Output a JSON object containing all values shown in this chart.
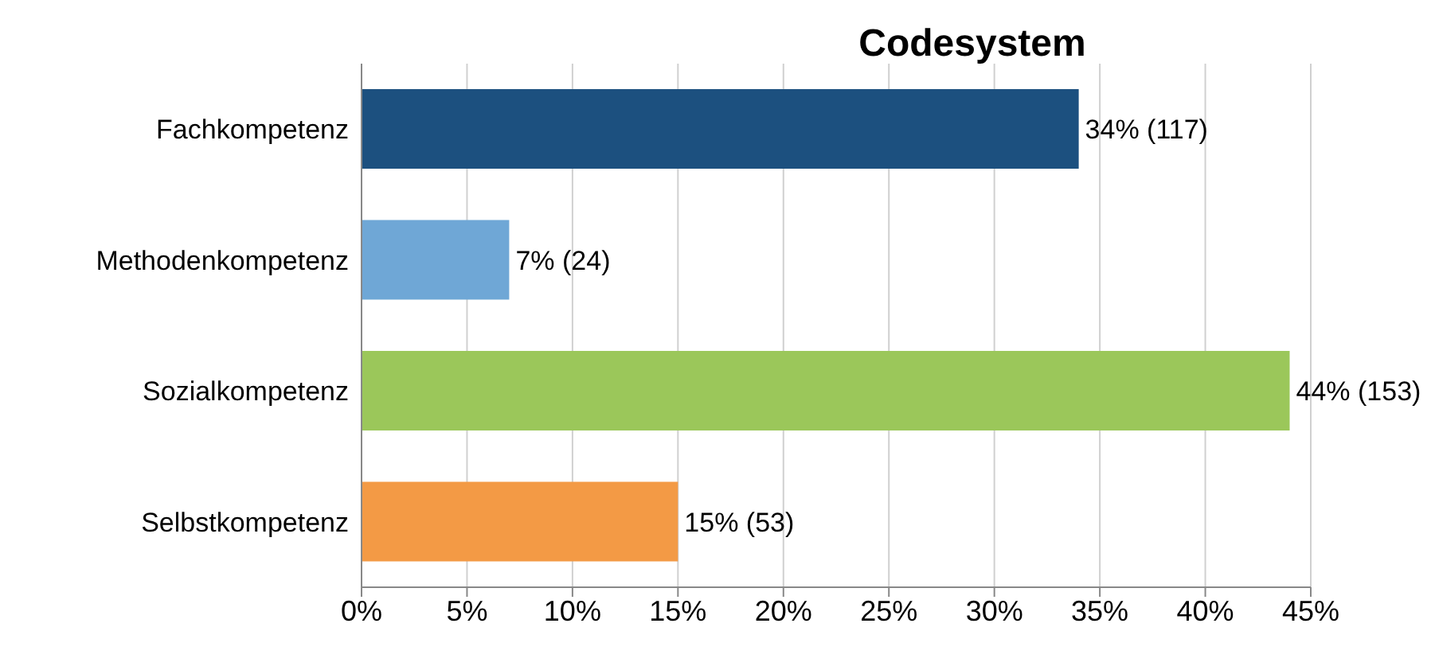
{
  "chart_data": {
    "type": "bar",
    "orientation": "horizontal",
    "title": "Codesystem",
    "categories": [
      "Fachkompetenz",
      "Methodenkompetenz",
      "Sozialkompetenz",
      "Selbstkompetenz"
    ],
    "values": [
      34,
      7,
      44,
      15
    ],
    "colors": [
      "#1c507f",
      "#6fa7d6",
      "#9bc75a",
      "#f39a45"
    ],
    "value_labels": [
      "34% (117)",
      "7% (24)",
      "44% (153)",
      "15% (53)"
    ],
    "xlim": [
      0,
      45
    ],
    "xticks": [
      {
        "value": 0,
        "label": "0%"
      },
      {
        "value": 5,
        "label": "5%"
      },
      {
        "value": 10,
        "label": "10%"
      },
      {
        "value": 15,
        "label": "15%"
      },
      {
        "value": 20,
        "label": "20%"
      },
      {
        "value": 25,
        "label": "25%"
      },
      {
        "value": 30,
        "label": "30%"
      },
      {
        "value": 35,
        "label": "35%"
      },
      {
        "value": 40,
        "label": "40%"
      },
      {
        "value": 45,
        "label": "45%"
      }
    ],
    "grid": "x",
    "legend": false
  }
}
